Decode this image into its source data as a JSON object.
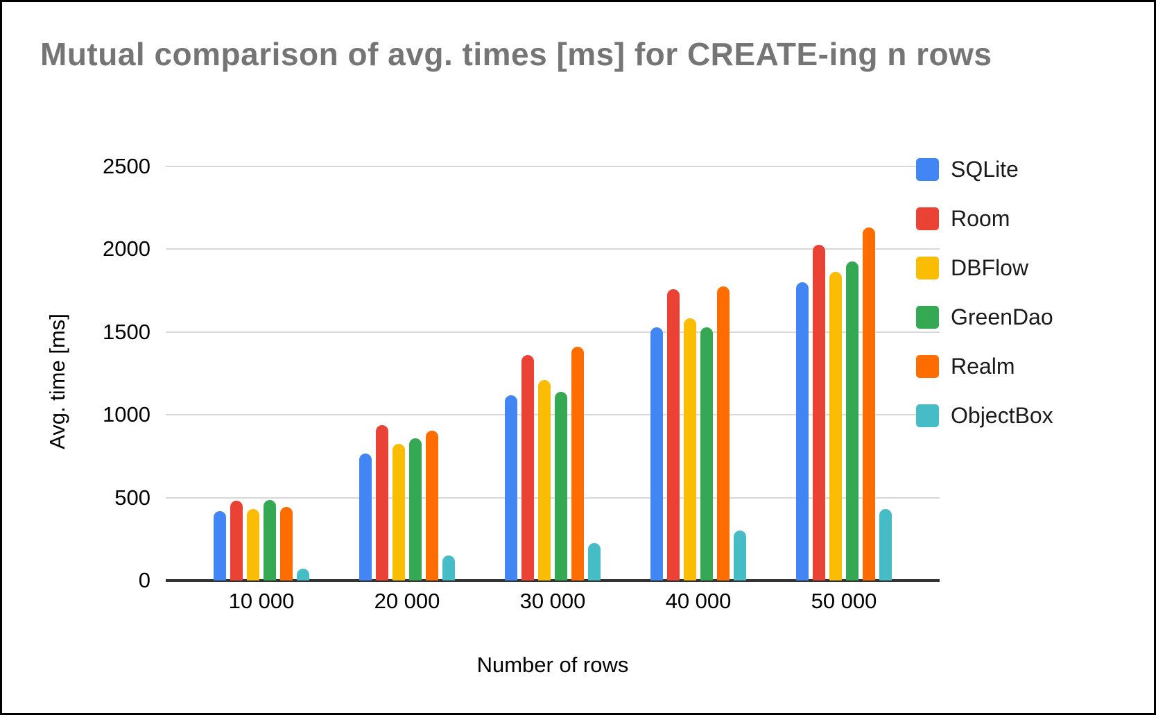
{
  "title": "Mutual comparison of avg. times [ms] for CREATE-ing n rows",
  "chart_data": {
    "type": "bar",
    "title": "Mutual comparison of avg. times [ms] for CREATE-ing n rows",
    "xlabel": "Number of rows",
    "ylabel": "Avg. time [ms]",
    "categories": [
      "10 000",
      "20 000",
      "30 000",
      "40 000",
      "50 000"
    ],
    "series": [
      {
        "name": "SQLite",
        "color": "#4285F4",
        "values": [
          420,
          765,
          1120,
          1530,
          1800
        ]
      },
      {
        "name": "Room",
        "color": "#EA4335",
        "values": [
          480,
          940,
          1360,
          1760,
          2025
        ]
      },
      {
        "name": "DBFlow",
        "color": "#FBBC04",
        "values": [
          430,
          825,
          1210,
          1585,
          1865
        ]
      },
      {
        "name": "GreenDao",
        "color": "#34A853",
        "values": [
          485,
          860,
          1140,
          1530,
          1925
        ]
      },
      {
        "name": "Realm",
        "color": "#FF6D01",
        "values": [
          445,
          905,
          1410,
          1775,
          2130
        ]
      },
      {
        "name": "ObjectBox",
        "color": "#46BDC6",
        "values": [
          70,
          150,
          225,
          300,
          433
        ]
      }
    ],
    "ylim": [
      0,
      2500
    ],
    "yticks": [
      0,
      500,
      1000,
      1500,
      2000,
      2500
    ],
    "grid": true,
    "legend_position": "right",
    "colors": {
      "title_text": "#757575",
      "axis_text": "#000000",
      "gridline": "#d9d9d9",
      "baseline": "#333333",
      "background": "#ffffff",
      "border": "#000000"
    }
  }
}
